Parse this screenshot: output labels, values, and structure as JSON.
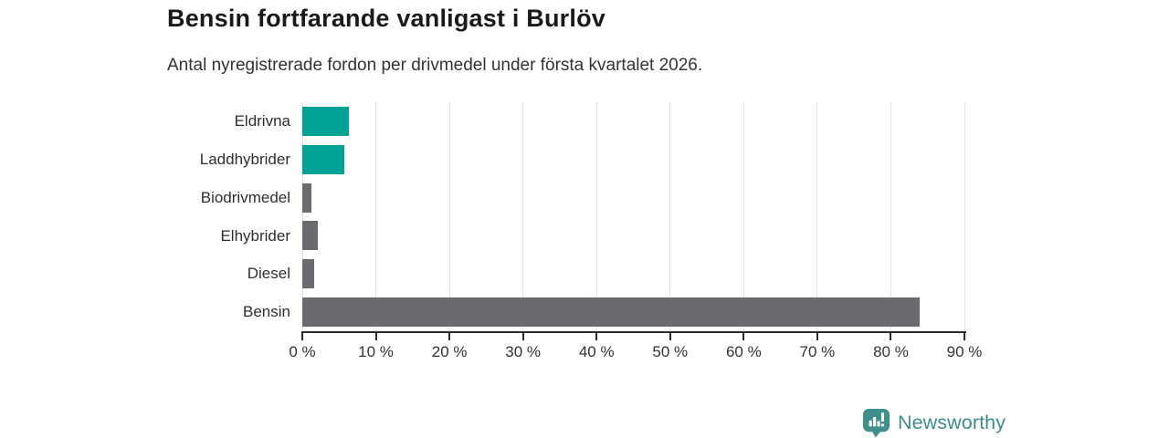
{
  "header": {
    "title": "Bensin fortfarande vanligast i Burlöv",
    "subtitle": "Antal nyregistrerade fordon per drivmedel under första kvartalet 2026."
  },
  "chart_data": {
    "type": "bar",
    "orientation": "horizontal",
    "title": "Bensin fortfarande vanligast i Burlöv",
    "subtitle": "Antal nyregistrerade fordon per drivmedel under första kvartalet 2026.",
    "categories": [
      "Eldrivna",
      "Laddhybrider",
      "Biodrivmedel",
      "Elhybrider",
      "Diesel",
      "Bensin"
    ],
    "values": [
      6.3,
      5.7,
      1.2,
      2.1,
      1.6,
      83.9
    ],
    "unit": "percent",
    "xlabel": "",
    "ylabel": "",
    "xlim": [
      0,
      90
    ],
    "x_ticks": [
      0,
      10,
      20,
      30,
      40,
      50,
      60,
      70,
      80,
      90
    ],
    "x_tick_labels": [
      "0 %",
      "10 %",
      "20 %",
      "30 %",
      "40 %",
      "50 %",
      "60 %",
      "70 %",
      "80 %",
      "90 %"
    ],
    "grid": "vertical-light",
    "legend": "none",
    "bar_colors": [
      "#00a296",
      "#00a296",
      "#6b6a70",
      "#6b6a70",
      "#6b6a70",
      "#6b6a70"
    ]
  },
  "colors": {
    "highlight_teal": "#00a296",
    "neutral_gray": "#6b6a70",
    "title_text": "#1a1a1a",
    "body_text": "#333333",
    "axis_line": "#2b2b2b",
    "gridline": "#e4e4e4",
    "brand_teal": "#3a8d89",
    "background": "#ffffff"
  },
  "footer": {
    "brand": "Newsworthy",
    "logo_icon": "bar-chart-speech-bubble-icon"
  }
}
